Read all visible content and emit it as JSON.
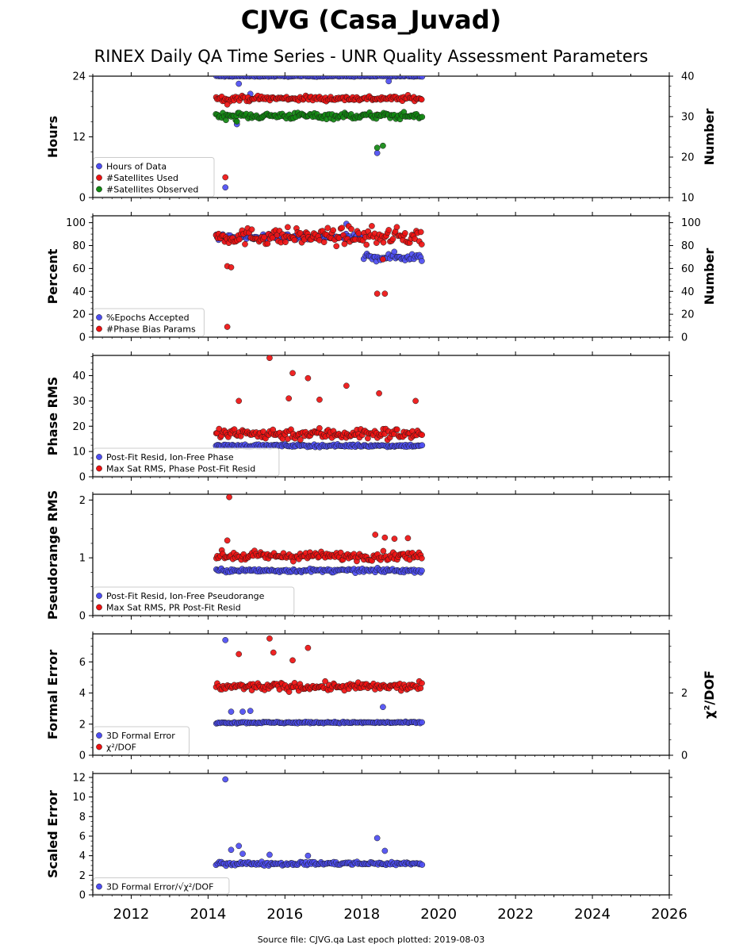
{
  "header": {
    "title": "CJVG (Casa_Juvad)",
    "subtitle": "RINEX Daily QA Time Series - UNR Quality Assessment Parameters"
  },
  "footer": {
    "source": "Source file: CJVG.qa Last epoch plotted: 2019-08-03"
  },
  "colors": {
    "blue": "#4d4df2",
    "red": "#ee1111",
    "green": "#118811",
    "darkred": "#5a0000"
  },
  "chart_data": {
    "type": "scatter",
    "x_axis": {
      "range": [
        2011.0,
        2026.0
      ],
      "ticks": [
        2012,
        2014,
        2016,
        2018,
        2020,
        2022,
        2024,
        2026
      ],
      "tick_labels": [
        "2012",
        "2014",
        "2016",
        "2018",
        "2020",
        "2022",
        "2024",
        "2026"
      ]
    },
    "date_span": [
      2014.2,
      2019.59
    ],
    "panels": [
      {
        "ylabel": "Hours",
        "ylim": [
          0,
          24
        ],
        "yticks": [
          0,
          12,
          24
        ],
        "y2label": "Number",
        "y2lim": [
          10,
          40
        ],
        "y2ticks": [
          10,
          20,
          30,
          40
        ],
        "legend": [
          "Hours of Data",
          "#Satellites Used",
          "#Satellites Observed"
        ],
        "series": [
          {
            "name": "Hours of Data",
            "color": "blue",
            "axis": "left",
            "base": 24.0,
            "noise": 0.1,
            "outliers": [
              [
                2014.45,
                2.0
              ],
              [
                2018.4,
                8.8
              ],
              [
                2014.75,
                14.5
              ],
              [
                2014.8,
                22.5
              ],
              [
                2018.7,
                23.0
              ],
              [
                2015.1,
                20.5
              ]
            ]
          },
          {
            "name": "#Satellites Used",
            "color": "red",
            "axis": "right",
            "base": 34.5,
            "noise": 0.6,
            "outliers": [
              [
                2014.45,
                15.0
              ],
              [
                2014.5,
                33.0
              ],
              [
                2018.4,
                30.5
              ],
              [
                2018.55,
                30.5
              ],
              [
                2017.6,
                30.2
              ]
            ]
          },
          {
            "name": "#Satellites Observed",
            "color": "green",
            "axis": "right",
            "base": 30.2,
            "noise": 0.8,
            "outliers": [
              [
                2018.4,
                22.3
              ],
              [
                2018.55,
                22.8
              ],
              [
                2014.75,
                28.8
              ]
            ]
          }
        ]
      },
      {
        "ylabel": "Percent",
        "ylim": [
          0,
          106
        ],
        "yticks": [
          0,
          20,
          40,
          60,
          80,
          100
        ],
        "y2label": "Number",
        "y2lim": [
          0,
          106
        ],
        "y2ticks": [
          0,
          20,
          40,
          60,
          80,
          100
        ],
        "legend": [
          "%Epochs Accepted",
          "#Phase Bias Params"
        ],
        "series": [
          {
            "name": "%Epochs Accepted",
            "color": "blue",
            "axis": "left",
            "segments": [
              [
                2014.2,
                2018.05,
                87,
                2.5
              ],
              [
                2018.05,
                2019.59,
                70,
                3.5
              ]
            ],
            "outliers": [
              [
                2017.6,
                99
              ]
            ]
          },
          {
            "name": "#Phase Bias Params",
            "color": "red",
            "axis": "right",
            "base": 88,
            "noise": 7,
            "outliers": [
              [
                2014.5,
                9
              ],
              [
                2018.4,
                38
              ],
              [
                2018.6,
                38
              ],
              [
                2014.5,
                62
              ],
              [
                2014.6,
                61
              ],
              [
                2018.55,
                68
              ]
            ]
          }
        ]
      },
      {
        "ylabel": "Phase RMS",
        "ylim": [
          0,
          48
        ],
        "yticks": [
          0,
          10,
          20,
          30,
          40
        ],
        "legend": [
          "Post-Fit Resid, Ion-Free Phase",
          "Max Sat RMS, Phase Post-Fit Resid"
        ],
        "series": [
          {
            "name": "Post-Fit Resid, Ion-Free Phase",
            "color": "blue",
            "axis": "left",
            "base": 12.3,
            "noise": 0.5,
            "outliers": []
          },
          {
            "name": "Max Sat RMS, Phase Post-Fit Resid",
            "color": "red",
            "axis": "left",
            "base": 17,
            "noise": 2.2,
            "outliers": [
              [
                2015.6,
                47
              ],
              [
                2016.2,
                41
              ],
              [
                2016.6,
                39
              ],
              [
                2017.6,
                36
              ],
              [
                2018.45,
                33
              ],
              [
                2016.1,
                31
              ],
              [
                2016.9,
                30.5
              ],
              [
                2019.4,
                30
              ],
              [
                2014.8,
                30
              ]
            ]
          }
        ]
      },
      {
        "ylabel": "Pseudorange RMS",
        "ylim": [
          0,
          2.1
        ],
        "yticks": [
          0,
          1,
          2
        ],
        "legend": [
          "Post-Fit Resid, Ion-Free Pseudorange",
          "Max Sat RMS, PR Post-Fit Resid"
        ],
        "series": [
          {
            "name": "Post-Fit Resid, Ion-Free Pseudorange",
            "color": "blue",
            "axis": "left",
            "base": 0.78,
            "noise": 0.03,
            "outliers": []
          },
          {
            "name": "Max Sat RMS, PR Post-Fit Resid",
            "color": "red",
            "axis": "left",
            "base": 1.03,
            "noise": 0.07,
            "outliers": [
              [
                2014.55,
                2.05
              ],
              [
                2018.35,
                1.4
              ],
              [
                2018.6,
                1.35
              ],
              [
                2018.85,
                1.33
              ],
              [
                2019.2,
                1.34
              ],
              [
                2014.5,
                1.3
              ]
            ]
          }
        ]
      },
      {
        "ylabel": "Formal Error",
        "ylim": [
          0,
          7.8
        ],
        "yticks": [
          0,
          2,
          4,
          6
        ],
        "y2label": "χ²/DOF",
        "y2lim": [
          0,
          3.9
        ],
        "y2ticks": [
          0,
          2
        ],
        "legend": [
          "3D Formal Error",
          "χ²/DOF"
        ],
        "series": [
          {
            "name": "3D Formal Error",
            "color": "blue",
            "axis": "left",
            "base": 2.1,
            "noise": 0.05,
            "outliers": [
              [
                2014.45,
                7.4
              ],
              [
                2014.6,
                2.8
              ],
              [
                2014.9,
                2.8
              ],
              [
                2015.1,
                2.85
              ],
              [
                2018.55,
                3.1
              ]
            ]
          },
          {
            "name": "χ²/DOF",
            "color": "red",
            "axis": "right",
            "base": 2.2,
            "noise": 0.12,
            "outliers": [
              [
                2015.6,
                3.75
              ],
              [
                2016.6,
                3.45
              ],
              [
                2014.8,
                3.25
              ],
              [
                2015.7,
                3.3
              ],
              [
                2016.2,
                3.05
              ]
            ]
          }
        ]
      },
      {
        "ylabel": "Scaled Error",
        "ylim": [
          0,
          12.4
        ],
        "yticks": [
          0,
          2,
          4,
          6,
          8,
          10,
          12
        ],
        "legend": [
          "3D Formal Error/√χ²/DOF"
        ],
        "series": [
          {
            "name": "3D Formal Error/√χ²/DOF",
            "color": "blue",
            "axis": "left",
            "base": 3.2,
            "noise": 0.18,
            "outliers": [
              [
                2014.45,
                11.8
              ],
              [
                2018.4,
                5.8
              ],
              [
                2018.6,
                4.5
              ],
              [
                2014.8,
                5.0
              ],
              [
                2014.9,
                4.2
              ],
              [
                2015.6,
                4.1
              ],
              [
                2016.6,
                4.0
              ],
              [
                2014.6,
                4.6
              ]
            ]
          }
        ]
      }
    ]
  }
}
